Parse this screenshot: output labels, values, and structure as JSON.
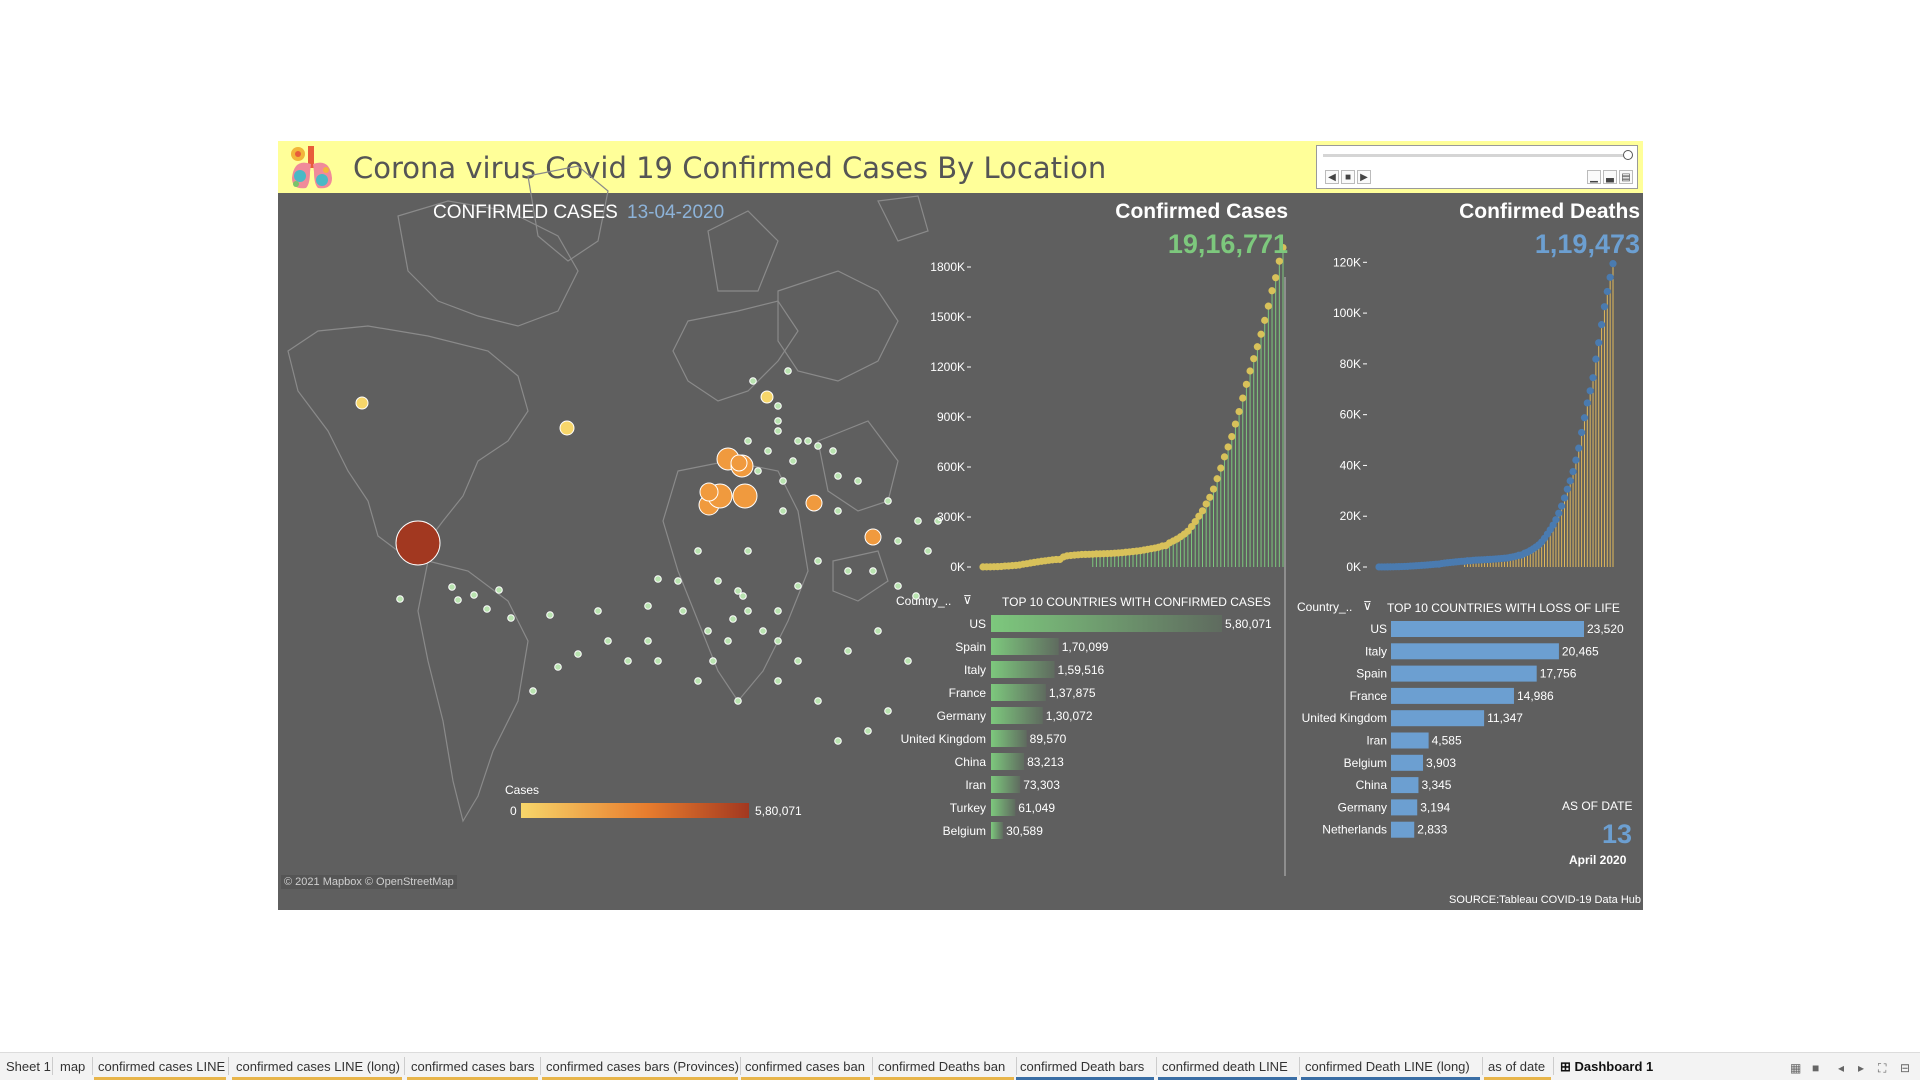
{
  "header": {
    "title": "Corona virus Covid 19 Confirmed Cases By Location"
  },
  "pager": {
    "prev": "◀",
    "stop": "■",
    "next": "▶"
  },
  "map": {
    "label": "CONFIRMED CASES",
    "date": "13-04-2020",
    "legend_title": "Cases",
    "legend_min": "0",
    "legend_max": "5,80,071",
    "attribution": "© 2021 Mapbox © OpenStreetMap",
    "colors": {
      "low": "#f7d66a",
      "mid": "#f09a3e",
      "high": "#a23820"
    }
  },
  "confirmed_kpi": {
    "title": "Confirmed Cases",
    "value": "19,16,771",
    "color": "#7dc87d"
  },
  "deaths_kpi": {
    "title": "Confirmed Deaths",
    "value": "1,19,473",
    "color": "#6c9fd1"
  },
  "top10_confirmed": {
    "title": "TOP 10 COUNTRIES WITH CONFIRMED CASES",
    "country_header": "Country_.."
  },
  "top10_deaths": {
    "title": "TOP 10 COUNTRIES WITH LOSS OF LIFE",
    "country_header": "Country_.."
  },
  "as_of": {
    "label": "AS OF DATE",
    "day": "13",
    "month_year": "April 2020"
  },
  "source": "SOURCE:Tableau COVID-19 Data Hub",
  "chart_data": [
    {
      "type": "line",
      "ylabel_ticks": [
        "0K",
        "300K",
        "600K",
        "900K",
        "1200K",
        "1500K",
        "1800K"
      ],
      "ylim": [
        0,
        1950000
      ],
      "series": [
        {
          "values": [
            555,
            654,
            941,
            1434,
            2118,
            2927,
            5578,
            6166,
            8234,
            9927,
            12038,
            16787,
            19881,
            23892,
            27635,
            30817,
            34391,
            37120,
            40150,
            42762,
            44802,
            45221,
            60368,
            66885,
            69030,
            71224,
            73258,
            75136,
            75639,
            76197,
            76819,
            78572,
            78958,
            79561,
            80406,
            81388,
            82746,
            84112,
            86011,
            88369,
            90306,
            92840,
            95120,
            97886,
            101801,
            105847,
            109821,
            113590,
            118620,
            125875,
            128352,
            145205,
            156101,
            167454,
            181574,
            197102,
            214821,
            242570,
            272208,
            304507,
            336953,
            378235,
            418045,
            467653,
            529591,
            593291,
            660706,
            720117,
            782365,
            857487,
            932605,
            1013466,
            1095917,
            1176060,
            1249754,
            1321481,
            1396476,
            1479804,
            1565278,
            1657526,
            1735650,
            1834721,
            1916771
          ]
        }
      ]
    },
    {
      "type": "line",
      "ylabel_ticks": [
        "0K",
        "20K",
        "40K",
        "60K",
        "80K",
        "100K",
        "120K"
      ],
      "ylim": [
        0,
        128000
      ],
      "series": [
        {
          "values": [
            17,
            18,
            26,
            42,
            56,
            82,
            131,
            133,
            171,
            213,
            259,
            362,
            426,
            492,
            564,
            634,
            719,
            806,
            906,
            1013,
            1113,
            1118,
            1371,
            1523,
            1666,
            1770,
            1868,
            2007,
            2122,
            2247,
            2251,
            2458,
            2469,
            2629,
            2708,
            2770,
            2814,
            2872,
            2941,
            2996,
            3085,
            3160,
            3254,
            3348,
            3460,
            3558,
            3802,
            3988,
            4262,
            4615,
            4720,
            5404,
            5819,
            6440,
            7126,
            7905,
            8733,
            9867,
            11299,
            12973,
            14651,
            16505,
            18625,
            21181,
            23970,
            27198,
            30652,
            33925,
            37582,
            42107,
            46809,
            52983,
            58787,
            64606,
            69374,
            74565,
            81865,
            88338,
            95455,
            102525,
            108503,
            114090,
            119473
          ]
        }
      ]
    },
    {
      "type": "bar",
      "categories": [
        "US",
        "Spain",
        "Italy",
        "France",
        "Germany",
        "United Kingdom",
        "China",
        "Iran",
        "Turkey",
        "Belgium"
      ],
      "values": [
        580071,
        170099,
        159516,
        137875,
        130072,
        89570,
        83213,
        73303,
        61049,
        30589
      ],
      "labels": [
        "5,80,071",
        "1,70,099",
        "1,59,516",
        "1,37,875",
        "1,30,072",
        "89,570",
        "83,213",
        "73,303",
        "61,049",
        "30,589"
      ]
    },
    {
      "type": "bar",
      "categories": [
        "US",
        "Italy",
        "Spain",
        "France",
        "United Kingdom",
        "Iran",
        "Belgium",
        "China",
        "Germany",
        "Netherlands"
      ],
      "values": [
        23520,
        20465,
        17756,
        14986,
        11347,
        4585,
        3903,
        3345,
        3194,
        2833
      ],
      "labels": [
        "23,520",
        "20,465",
        "17,756",
        "14,986",
        "11,347",
        "4,585",
        "3,903",
        "3,345",
        "3,194",
        "2,833"
      ]
    }
  ],
  "tabs": [
    {
      "label": "Sheet 1",
      "line": ""
    },
    {
      "label": "map",
      "line": ""
    },
    {
      "label": "confirmed cases LINE",
      "line": "#e8b54a"
    },
    {
      "label": "confirmed cases LINE (long)",
      "line": "#e8b54a"
    },
    {
      "label": "confirmed cases bars",
      "line": "#e8b54a"
    },
    {
      "label": "confirmed cases bars (Provinces)",
      "line": "#e8b54a"
    },
    {
      "label": "confirmed cases ban",
      "line": "#e8b54a"
    },
    {
      "label": "confirmed Deaths ban",
      "line": "#e8b54a"
    },
    {
      "label": "confirmed Death bars",
      "line": "#3a6ea5"
    },
    {
      "label": "confirmed  death LINE",
      "line": "#3a6ea5"
    },
    {
      "label": "confirmed  Death LINE (long)",
      "line": "#3a6ea5"
    },
    {
      "label": "as of date",
      "line": "#e8b54a"
    },
    {
      "label": "Dashboard 1",
      "line": ""
    }
  ]
}
